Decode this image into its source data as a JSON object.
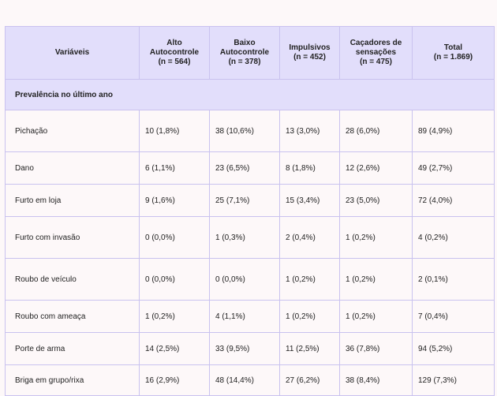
{
  "table": {
    "headers": [
      "Variáveis",
      "Alto\nAutocontrole\n(n = 564)",
      "Baixo\nAutocontrole\n(n = 378)",
      "Impulsivos\n(n = 452)",
      "Caçadores de\nsensações\n(n = 475)",
      "Total\n(n = 1.869)"
    ],
    "section_title": "Prevalência no último ano",
    "rows": [
      [
        "Pichação",
        "10 (1,8%)",
        "38 (10,6%)",
        "13 (3,0%)",
        "28 (6,0%)",
        "89 (4,9%)"
      ],
      [
        "Dano",
        "6 (1,1%)",
        "23 (6,5%)",
        "8 (1,8%)",
        "12 (2,6%)",
        "49 (2,7%)"
      ],
      [
        "Furto em loja",
        "9 (1,6%)",
        "25 (7,1%)",
        "15 (3,4%)",
        "23 (5,0%)",
        "72 (4,0%)"
      ],
      [
        "Furto com invasão",
        "0 (0,0%)",
        "1 (0,3%)",
        "2 (0,4%)",
        "1 (0,2%)",
        "4 (0,2%)"
      ],
      [
        "Roubo de veículo",
        "0 (0,0%)",
        "0 (0,0%)",
        "1 (0,2%)",
        "1 (0,2%)",
        "2 (0,1%)"
      ],
      [
        "Roubo com ameaça",
        "1 (0,2%)",
        "4 (1,1%)",
        "1 (0,2%)",
        "1 (0,2%)",
        "7 (0,4%)"
      ],
      [
        "Porte de arma",
        "14 (2,5%)",
        "33 (9,5%)",
        "11 (2,5%)",
        "36 (7,8%)",
        "94 (5,2%)"
      ],
      [
        "Briga em grupo/rixa",
        "16 (2,9%)",
        "48 (14,4%)",
        "27 (6,2%)",
        "38 (8,4%)",
        "129 (7,3%)"
      ]
    ]
  }
}
